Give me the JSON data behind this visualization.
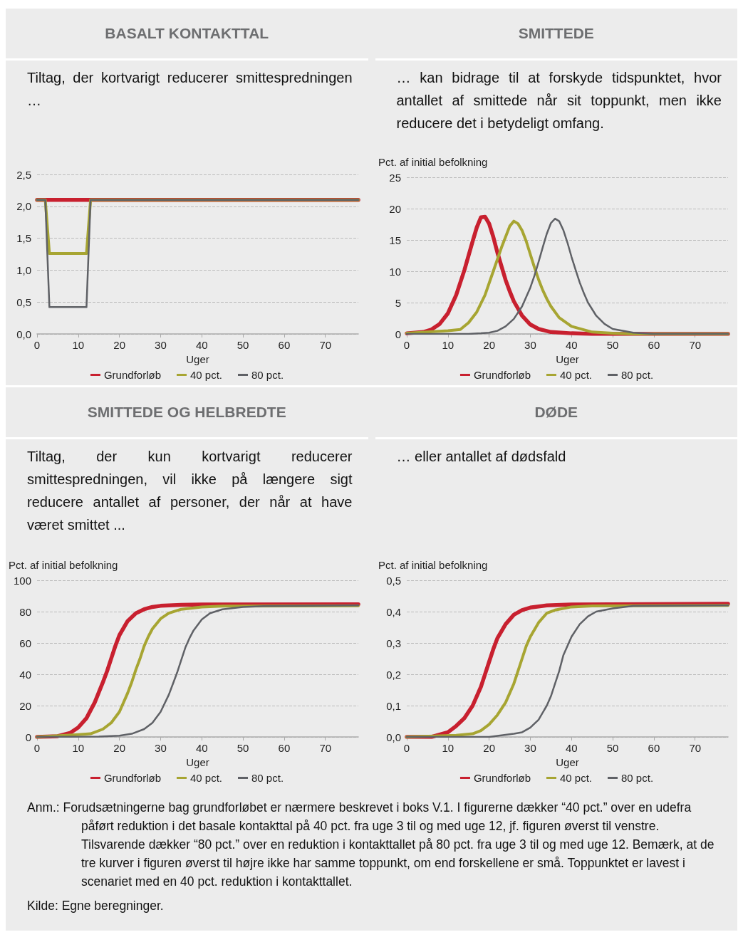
{
  "chart_data": [
    {
      "type": "line",
      "title": "BASALT KONTAKTTAL",
      "subtitle": "Tiltag, der kortvarigt reducerer smittespredningen …",
      "xlabel": "Uger",
      "xlim": [
        0,
        78
      ],
      "xticks": [
        0,
        10,
        20,
        30,
        40,
        50,
        60,
        70
      ],
      "ylim": [
        0,
        2.5
      ],
      "yticks": [
        {
          "value": 0,
          "label": "0,0"
        },
        {
          "value": 0.5,
          "label": "0,5"
        },
        {
          "value": 1,
          "label": "1,0"
        },
        {
          "value": 1.5,
          "label": "1,5"
        },
        {
          "value": 2,
          "label": "2,0"
        },
        {
          "value": 2.5,
          "label": "2,5"
        }
      ],
      "grid": "y",
      "legend": "bottom",
      "marker": "none",
      "line_style": "solid",
      "series": [
        {
          "name": "Grundforløb",
          "color": "#c8202f",
          "x": [
            0,
            78
          ],
          "values": [
            2.1,
            2.1
          ]
        },
        {
          "name": "40 pct.",
          "color": "#a7a532",
          "x": [
            0,
            2,
            3,
            12,
            13,
            78
          ],
          "values": [
            2.1,
            2.1,
            1.26,
            1.26,
            2.1,
            2.1
          ]
        },
        {
          "name": "80 pct.",
          "color": "#5f6166",
          "x": [
            0,
            2,
            3,
            12,
            13,
            78
          ],
          "values": [
            2.1,
            2.1,
            0.42,
            0.42,
            2.1,
            2.1
          ]
        }
      ]
    },
    {
      "type": "line",
      "title": "SMITTEDE",
      "subtitle": "… kan bidrage til at forskyde tidspunktet, hvor antallet af smittede når sit toppunkt, men ikke reducere det i betydeligt omfang.",
      "xlabel": "Uger",
      "ylabel": "Pct. af initial befolkning",
      "xlim": [
        0,
        78
      ],
      "xticks": [
        0,
        10,
        20,
        30,
        40,
        50,
        60,
        70
      ],
      "ylim": [
        0,
        25
      ],
      "yticks": [
        0,
        5,
        10,
        15,
        20,
        25
      ],
      "grid": "y",
      "legend": "bottom",
      "marker": "none",
      "line_style": "solid",
      "series": [
        {
          "name": "Grundforløb",
          "color": "#c8202f",
          "x": [
            0,
            4,
            6,
            8,
            10,
            12,
            14,
            15,
            16,
            17,
            18,
            19,
            20,
            21,
            22,
            23,
            24,
            25,
            26,
            28,
            30,
            32,
            35,
            40,
            45,
            78
          ],
          "values": [
            0.1,
            0.3,
            0.7,
            1.6,
            3.3,
            6.2,
            10.2,
            12.5,
            14.8,
            17,
            18.6,
            18.7,
            17.6,
            15.5,
            13,
            10.8,
            8.6,
            6.8,
            5.2,
            2.9,
            1.5,
            0.8,
            0.3,
            0.1,
            0,
            0
          ]
        },
        {
          "name": "40 pct.",
          "color": "#a7a532",
          "x": [
            0,
            10,
            13,
            15,
            17,
            19,
            21,
            23,
            25,
            26,
            27,
            28,
            29,
            30,
            31,
            32,
            33,
            34,
            35,
            37,
            40,
            45,
            50,
            55,
            78
          ],
          "values": [
            0.1,
            0.5,
            0.7,
            1.8,
            3.5,
            6.2,
            10,
            13.8,
            17.2,
            18,
            17.6,
            16.5,
            14.8,
            12.7,
            10.6,
            8.7,
            7,
            5.6,
            4.4,
            2.6,
            1.2,
            0.3,
            0.1,
            0,
            0
          ]
        },
        {
          "name": "80 pct.",
          "color": "#5f6166",
          "x": [
            0,
            10,
            15,
            18,
            20,
            22,
            24,
            26,
            28,
            30,
            31,
            32,
            33,
            34,
            35,
            36,
            37,
            38,
            39,
            40,
            41,
            42,
            43,
            44,
            46,
            48,
            50,
            55,
            60,
            78
          ],
          "values": [
            0,
            0,
            0,
            0.1,
            0.2,
            0.5,
            1.2,
            2.4,
            4.4,
            7.4,
            9.3,
            11.5,
            13.8,
            16,
            17.7,
            18.4,
            18,
            16.6,
            14.6,
            12.3,
            10.2,
            8.2,
            6.5,
            5,
            2.9,
            1.6,
            0.8,
            0.2,
            0,
            0
          ]
        }
      ]
    },
    {
      "type": "line",
      "title": "SMITTEDE OG HELBREDTE",
      "subtitle": "Tiltag, der kun kortvarigt reducerer smittespredningen, vil ikke på længere sigt reducere antallet af personer, der når at have været smittet ...",
      "xlabel": "Uger",
      "ylabel": "Pct. af initial befolkning",
      "xlim": [
        0,
        78
      ],
      "xticks": [
        0,
        10,
        20,
        30,
        40,
        50,
        60,
        70
      ],
      "ylim": [
        0,
        100
      ],
      "yticks": [
        0,
        20,
        40,
        60,
        80,
        100
      ],
      "grid": "y",
      "legend": "bottom",
      "marker": "none",
      "line_style": "solid",
      "series": [
        {
          "name": "Grundforløb",
          "color": "#c8202f",
          "x": [
            0,
            5,
            8,
            10,
            12,
            14,
            16,
            17,
            18,
            19,
            20,
            22,
            24,
            26,
            28,
            30,
            35,
            40,
            78
          ],
          "values": [
            0,
            0.5,
            2.5,
            6,
            12,
            22,
            35,
            42,
            50,
            58,
            65,
            74,
            79,
            81.5,
            83,
            83.7,
            84.3,
            84.5,
            84.7
          ]
        },
        {
          "name": "40 pct.",
          "color": "#a7a532",
          "x": [
            0,
            10,
            13,
            16,
            18,
            20,
            22,
            23,
            24,
            25,
            26,
            27,
            28,
            30,
            32,
            35,
            40,
            45,
            78
          ],
          "values": [
            0,
            1.5,
            2,
            5,
            9,
            16,
            28,
            35,
            43,
            50,
            58,
            64,
            69,
            75.5,
            79,
            81.5,
            83,
            83.5,
            83.8
          ]
        },
        {
          "name": "80 pct.",
          "color": "#5f6166",
          "x": [
            0,
            15,
            20,
            23,
            26,
            28,
            30,
            32,
            33,
            34,
            35,
            36,
            37,
            38,
            40,
            42,
            45,
            50,
            55,
            78
          ],
          "values": [
            0,
            0.2,
            0.8,
            2,
            5,
            9,
            16,
            27,
            34,
            41,
            49,
            57,
            63,
            68,
            75,
            79,
            81.5,
            83,
            83.5,
            84
          ]
        }
      ]
    },
    {
      "type": "line",
      "title": "DØDE",
      "subtitle": "… eller antallet af dødsfald",
      "xlabel": "Uger",
      "ylabel": "Pct. af initial befolkning",
      "xlim": [
        0,
        78
      ],
      "xticks": [
        0,
        10,
        20,
        30,
        40,
        50,
        60,
        70
      ],
      "ylim": [
        0,
        0.5
      ],
      "yticks": [
        {
          "value": 0,
          "label": "0,0"
        },
        {
          "value": 0.1,
          "label": "0,1"
        },
        {
          "value": 0.2,
          "label": "0,2"
        },
        {
          "value": 0.3,
          "label": "0,3"
        },
        {
          "value": 0.4,
          "label": "0,4"
        },
        {
          "value": 0.5,
          "label": "0,5"
        }
      ],
      "grid": "y",
      "legend": "bottom",
      "marker": "none",
      "line_style": "solid",
      "annotations": [
        "Anm.: Forudsætningerne bag grundforløbet er nærmere beskrevet i boks V.1. I figurerne dækker “40 pct.” over en udefra påført reduktion i det basale kontakttal på 40 pct. fra uge 3 til og med uge 12, jf. figuren øverst til venstre. Tilsvarende dækker “80 pct.” over en reduktion i kontakttallet på 80 pct. fra uge 3 til og med uge 12. Bemærk, at de tre kurver i figuren øverst til højre ikke har samme toppunkt, om end forskellene er små. Toppunktet er lavest i scenariet med en 40 pct. reduktion i kontakttallet.",
        "Kilde: Egne beregninger."
      ],
      "series": [
        {
          "name": "Grundforløb",
          "color": "#c8202f",
          "x": [
            0,
            6,
            10,
            12,
            14,
            16,
            18,
            19,
            20,
            21,
            22,
            24,
            26,
            28,
            30,
            34,
            40,
            78
          ],
          "values": [
            0,
            0,
            0.015,
            0.035,
            0.06,
            0.1,
            0.16,
            0.2,
            0.24,
            0.28,
            0.315,
            0.36,
            0.39,
            0.405,
            0.413,
            0.42,
            0.423,
            0.425
          ]
        },
        {
          "name": "40 pct.",
          "color": "#a7a532",
          "x": [
            0,
            12,
            16,
            18,
            20,
            22,
            24,
            26,
            27,
            28,
            29,
            30,
            32,
            34,
            36,
            40,
            45,
            78
          ],
          "values": [
            0,
            0.005,
            0.01,
            0.02,
            0.04,
            0.07,
            0.11,
            0.17,
            0.21,
            0.25,
            0.29,
            0.32,
            0.365,
            0.395,
            0.405,
            0.415,
            0.418,
            0.42
          ]
        },
        {
          "name": "80 pct.",
          "color": "#5f6166",
          "x": [
            0,
            20,
            26,
            28,
            30,
            32,
            34,
            35,
            36,
            37,
            38,
            40,
            42,
            44,
            46,
            50,
            55,
            78
          ],
          "values": [
            0,
            0,
            0.01,
            0.015,
            0.03,
            0.055,
            0.1,
            0.13,
            0.17,
            0.21,
            0.26,
            0.32,
            0.36,
            0.385,
            0.4,
            0.41,
            0.418,
            0.42
          ]
        }
      ]
    }
  ]
}
